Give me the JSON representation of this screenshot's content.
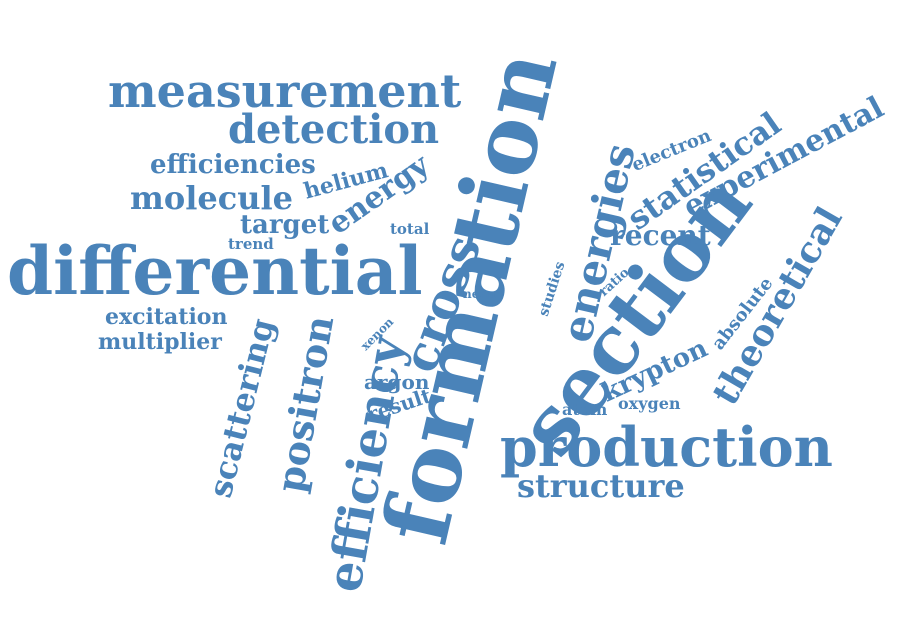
{
  "colors": {
    "word": "#4a83b9",
    "background": "#ffffff"
  },
  "words": [
    {
      "id": "formation",
      "text": "formation"
    },
    {
      "id": "section",
      "text": "section"
    },
    {
      "id": "differential",
      "text": "differential"
    },
    {
      "id": "production",
      "text": "production"
    },
    {
      "id": "measurement",
      "text": "measurement"
    },
    {
      "id": "detection",
      "text": "detection"
    },
    {
      "id": "efficiency",
      "text": "efficiency"
    },
    {
      "id": "cross",
      "text": "cross"
    },
    {
      "id": "energies",
      "text": "energies"
    },
    {
      "id": "theoretical",
      "text": "theoretical"
    },
    {
      "id": "experimental",
      "text": "experimental"
    },
    {
      "id": "statistical",
      "text": "statistical"
    },
    {
      "id": "positron",
      "text": "positron"
    },
    {
      "id": "scattering",
      "text": "scattering"
    },
    {
      "id": "structure",
      "text": "structure"
    },
    {
      "id": "molecule",
      "text": "molecule"
    },
    {
      "id": "efficiencies",
      "text": "efficiencies"
    },
    {
      "id": "recent",
      "text": "recent"
    },
    {
      "id": "energy",
      "text": "energy"
    },
    {
      "id": "target",
      "text": "target"
    },
    {
      "id": "krypton",
      "text": "krypton"
    },
    {
      "id": "helium",
      "text": "helium"
    },
    {
      "id": "excitation",
      "text": "excitation"
    },
    {
      "id": "multiplier",
      "text": "multiplier"
    },
    {
      "id": "argon",
      "text": "argon"
    },
    {
      "id": "result",
      "text": "result"
    },
    {
      "id": "absolute",
      "text": "absolute"
    },
    {
      "id": "electron",
      "text": "electron"
    },
    {
      "id": "oxygen",
      "text": "oxygen"
    },
    {
      "id": "atom",
      "text": "atom"
    },
    {
      "id": "total",
      "text": "total"
    },
    {
      "id": "trend",
      "text": "trend"
    },
    {
      "id": "studies",
      "text": "studies"
    },
    {
      "id": "ratio",
      "text": "ratio"
    },
    {
      "id": "neon",
      "text": "neon"
    },
    {
      "id": "xenon",
      "text": "xenon"
    }
  ]
}
